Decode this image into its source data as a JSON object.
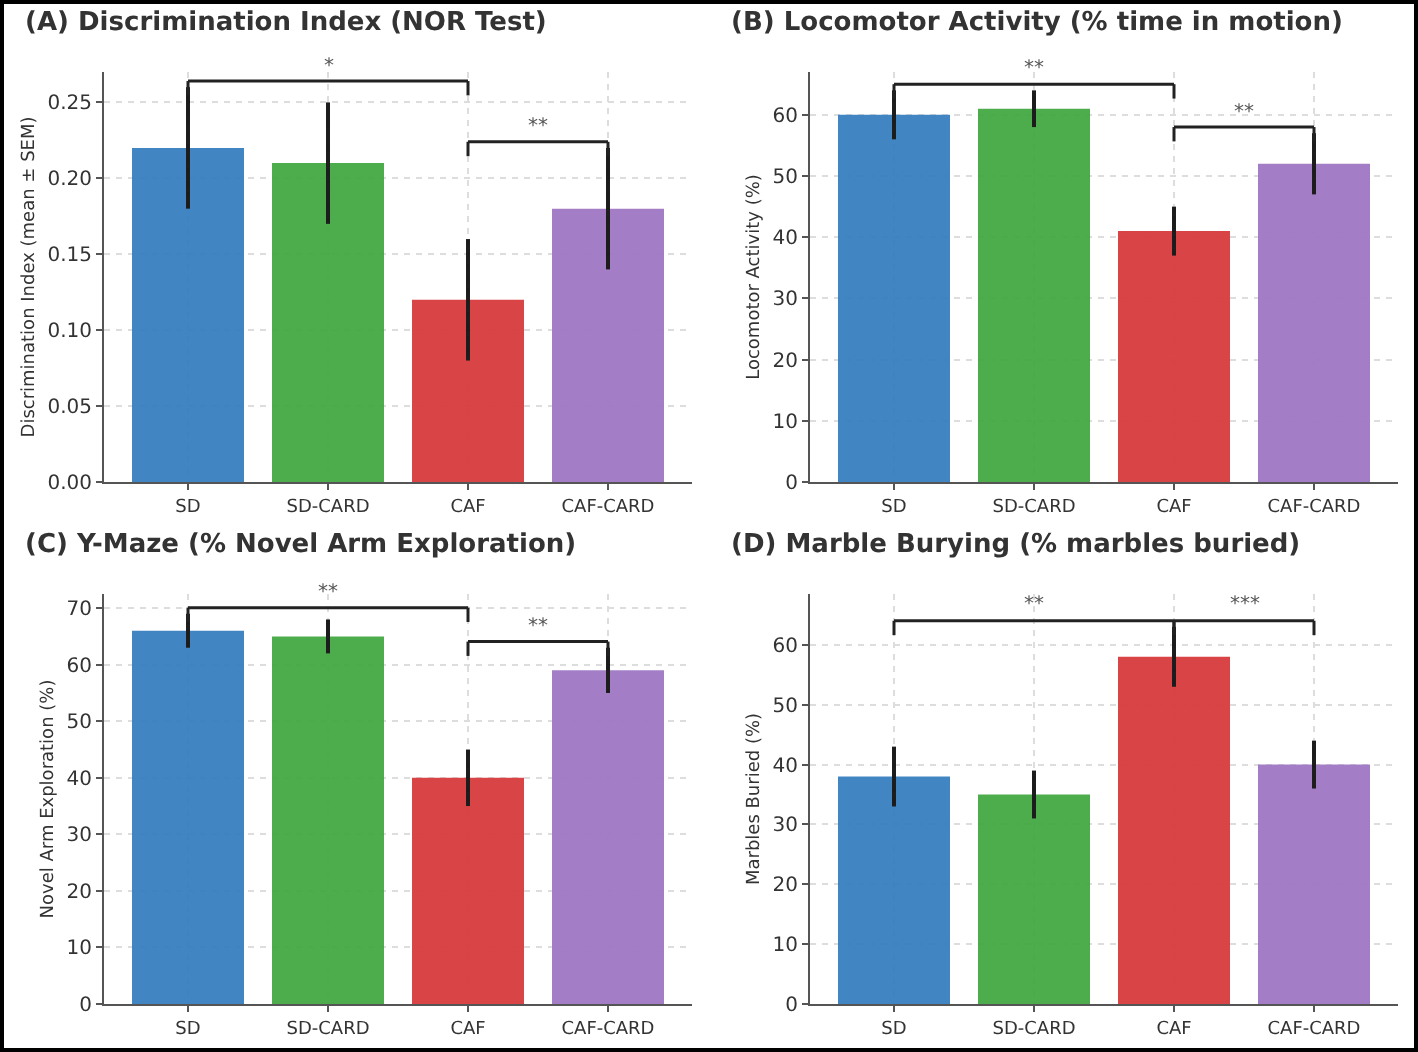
{
  "chart_data": [
    {
      "type": "bar",
      "title": "(A) Discrimination Index (NOR Test)",
      "ylabel": "Discrimination Index (mean ± SEM)",
      "categories": [
        "SD",
        "SD-CARD",
        "CAF",
        "CAF-CARD"
      ],
      "colors": [
        "#3780bf",
        "#44a843",
        "#d83b3d",
        "#9f78c4"
      ],
      "values": [
        0.22,
        0.21,
        0.12,
        0.18
      ],
      "errors": [
        0.04,
        0.04,
        0.04,
        0.04
      ],
      "ylim": [
        0,
        0.27
      ],
      "yticks": [
        {
          "value": 0,
          "label": "0.00"
        },
        {
          "value": 0.05,
          "label": "0.05"
        },
        {
          "value": 0.1,
          "label": "0.10"
        },
        {
          "value": 0.15,
          "label": "0.15"
        },
        {
          "value": 0.2,
          "label": "0.20"
        },
        {
          "value": 0.25,
          "label": "0.25"
        }
      ],
      "grid": true,
      "annotations": [
        "*",
        "**"
      ]
    },
    {
      "type": "bar",
      "title": "(B) Locomotor Activity (% time in motion)",
      "ylabel": "Locomotor Activity (%)",
      "categories": [
        "SD",
        "SD-CARD",
        "CAF",
        "CAF-CARD"
      ],
      "colors": [
        "#3780bf",
        "#44a843",
        "#d83b3d",
        "#9f78c4"
      ],
      "values": [
        60,
        61,
        41,
        52
      ],
      "errors": [
        4,
        3,
        4,
        5
      ],
      "ylim": [
        0,
        67
      ],
      "yticks": [
        0,
        10,
        20,
        30,
        40,
        50,
        60
      ],
      "grid": true,
      "annotations": [
        "**",
        "**"
      ]
    },
    {
      "type": "bar",
      "title": "(C) Y-Maze (% Novel Arm Exploration)",
      "ylabel": "Novel Arm Exploration (%)",
      "categories": [
        "SD",
        "SD-CARD",
        "CAF",
        "CAF-CARD"
      ],
      "colors": [
        "#3780bf",
        "#44a843",
        "#d83b3d",
        "#9f78c4"
      ],
      "values": [
        66,
        65,
        40,
        59
      ],
      "errors": [
        3,
        3,
        5,
        4
      ],
      "ylim": [
        0,
        72.5
      ],
      "yticks": [
        0,
        10,
        20,
        30,
        40,
        50,
        60,
        70
      ],
      "grid": true,
      "annotations": [
        "**",
        "**"
      ]
    },
    {
      "type": "bar",
      "title": "(D) Marble Burying (% marbles buried)",
      "ylabel": "Marbles Buried (%)",
      "categories": [
        "SD",
        "SD-CARD",
        "CAF",
        "CAF-CARD"
      ],
      "colors": [
        "#3780bf",
        "#44a843",
        "#d83b3d",
        "#9f78c4"
      ],
      "values": [
        38,
        35,
        58,
        40
      ],
      "errors": [
        5,
        4,
        5,
        4
      ],
      "ylim": [
        0,
        68.5
      ],
      "yticks": [
        0,
        10,
        20,
        30,
        40,
        50,
        60
      ],
      "grid": true,
      "annotations": [
        "**",
        "***"
      ]
    }
  ]
}
